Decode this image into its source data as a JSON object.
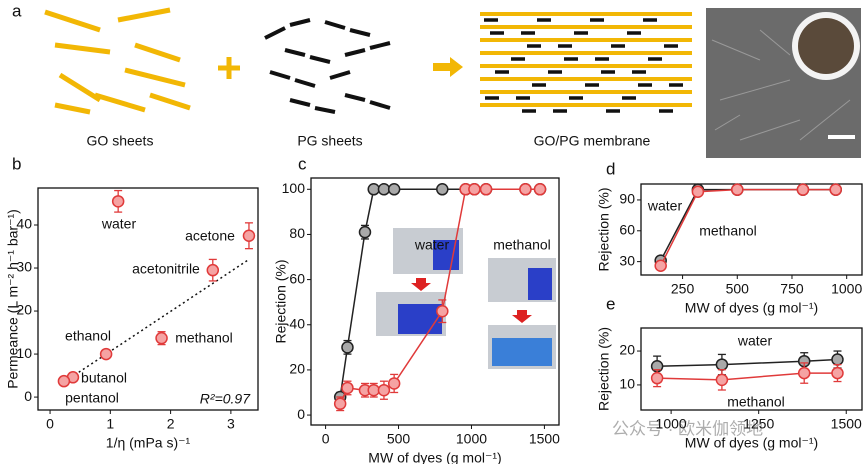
{
  "schematic": {
    "panel": "a",
    "labels": [
      "GO sheets",
      "PG sheets",
      "GO/PG membrane"
    ]
  },
  "watermark": "公众号 · 欧米伽领地",
  "chart_data": [
    {
      "type": "scatter",
      "panel": "b",
      "xlabel": "1/η (mPa s)⁻¹",
      "ylabel": "Permeance (L m⁻² h⁻¹ bar⁻¹)",
      "xlim": [
        -0.2,
        3.45
      ],
      "xticks": [
        0,
        1,
        2,
        3
      ],
      "ylim": [
        -3,
        48.6
      ],
      "yticks": [
        0,
        10,
        20,
        30,
        40
      ],
      "color": "#e03a3a",
      "point_labels": [
        "water",
        "acetone",
        "acetonitrile",
        "methanol",
        "ethanol",
        "butanol",
        "pentanol"
      ],
      "x": [
        1.13,
        3.3,
        2.7,
        1.85,
        0.93,
        0.38,
        0.23
      ],
      "values": [
        45.5,
        37.5,
        29.5,
        13.7,
        10,
        4.6,
        3.7
      ],
      "errors": [
        2.5,
        3,
        2.5,
        1.5,
        0.6,
        0.6,
        0.6
      ],
      "fit": {
        "x": [
          0.2,
          3.3
        ],
        "y": [
          3.2,
          32
        ]
      },
      "annotation": "R²=0.97"
    },
    {
      "type": "line",
      "panel": "c",
      "xlabel": "MW of dyes (g mol⁻¹)",
      "ylabel": "Rejection (%)",
      "xlim": [
        -100,
        1600
      ],
      "xticks": [
        0,
        500,
        1000,
        1500
      ],
      "ylim": [
        -4.4,
        105
      ],
      "yticks": [
        0,
        20,
        40,
        60,
        80,
        100
      ],
      "x": [
        100,
        150,
        270,
        330,
        400,
        470,
        800,
        960,
        1020,
        1100,
        1370,
        1470
      ],
      "series": [
        {
          "name": "water",
          "color": "#222222",
          "values": [
            8,
            30,
            81,
            100,
            100,
            100,
            100,
            100,
            100,
            100,
            100,
            100
          ],
          "errors": [
            2,
            3,
            3,
            1,
            1,
            1,
            1,
            1,
            1,
            1,
            1,
            1
          ]
        },
        {
          "name": "methanol",
          "color": "#e03a3a",
          "values": [
            5,
            12,
            11,
            11,
            11,
            14,
            46,
            100,
            100,
            100,
            100,
            100
          ],
          "errors": [
            3,
            3,
            3,
            3,
            4,
            4,
            5,
            1,
            1,
            1,
            1,
            1
          ]
        }
      ]
    },
    {
      "type": "line",
      "panel": "d",
      "xlabel": "MW of dyes (g mol⁻¹)",
      "ylabel": "Rejection (%)",
      "xlim": [
        60,
        1070
      ],
      "xticks": [
        250,
        500,
        750,
        1000
      ],
      "ylim": [
        17,
        105.5
      ],
      "yticks": [
        30,
        60,
        90
      ],
      "x": [
        150,
        320,
        500,
        800,
        950
      ],
      "series": [
        {
          "name": "water",
          "color": "#222222",
          "values": [
            31,
            100,
            100,
            100,
            100
          ],
          "errors": [
            2,
            2,
            1,
            1,
            1
          ]
        },
        {
          "name": "methanol",
          "color": "#e03a3a",
          "values": [
            26,
            98,
            100,
            100,
            100
          ],
          "errors": [
            3,
            3,
            1,
            1,
            1
          ]
        }
      ]
    },
    {
      "type": "line",
      "panel": "e",
      "xlabel": "MW of dyes (g mol⁻¹)",
      "ylabel": "Rejection (%)",
      "xlim": [
        914,
        1545
      ],
      "xticks": [
        1000,
        1250,
        1500
      ],
      "ylim": [
        2.6,
        26.8
      ],
      "yticks": [
        10,
        20
      ],
      "x": [
        960,
        1145,
        1380,
        1475
      ],
      "series": [
        {
          "name": "water",
          "color": "#222222",
          "values": [
            15.5,
            16,
            17,
            17.5
          ],
          "errors": [
            3,
            3,
            2.5,
            2.5
          ]
        },
        {
          "name": "methanol",
          "color": "#e03a3a",
          "values": [
            12,
            11.5,
            13.5,
            13.5
          ],
          "errors": [
            2.5,
            3,
            3,
            2.5
          ]
        }
      ]
    }
  ]
}
